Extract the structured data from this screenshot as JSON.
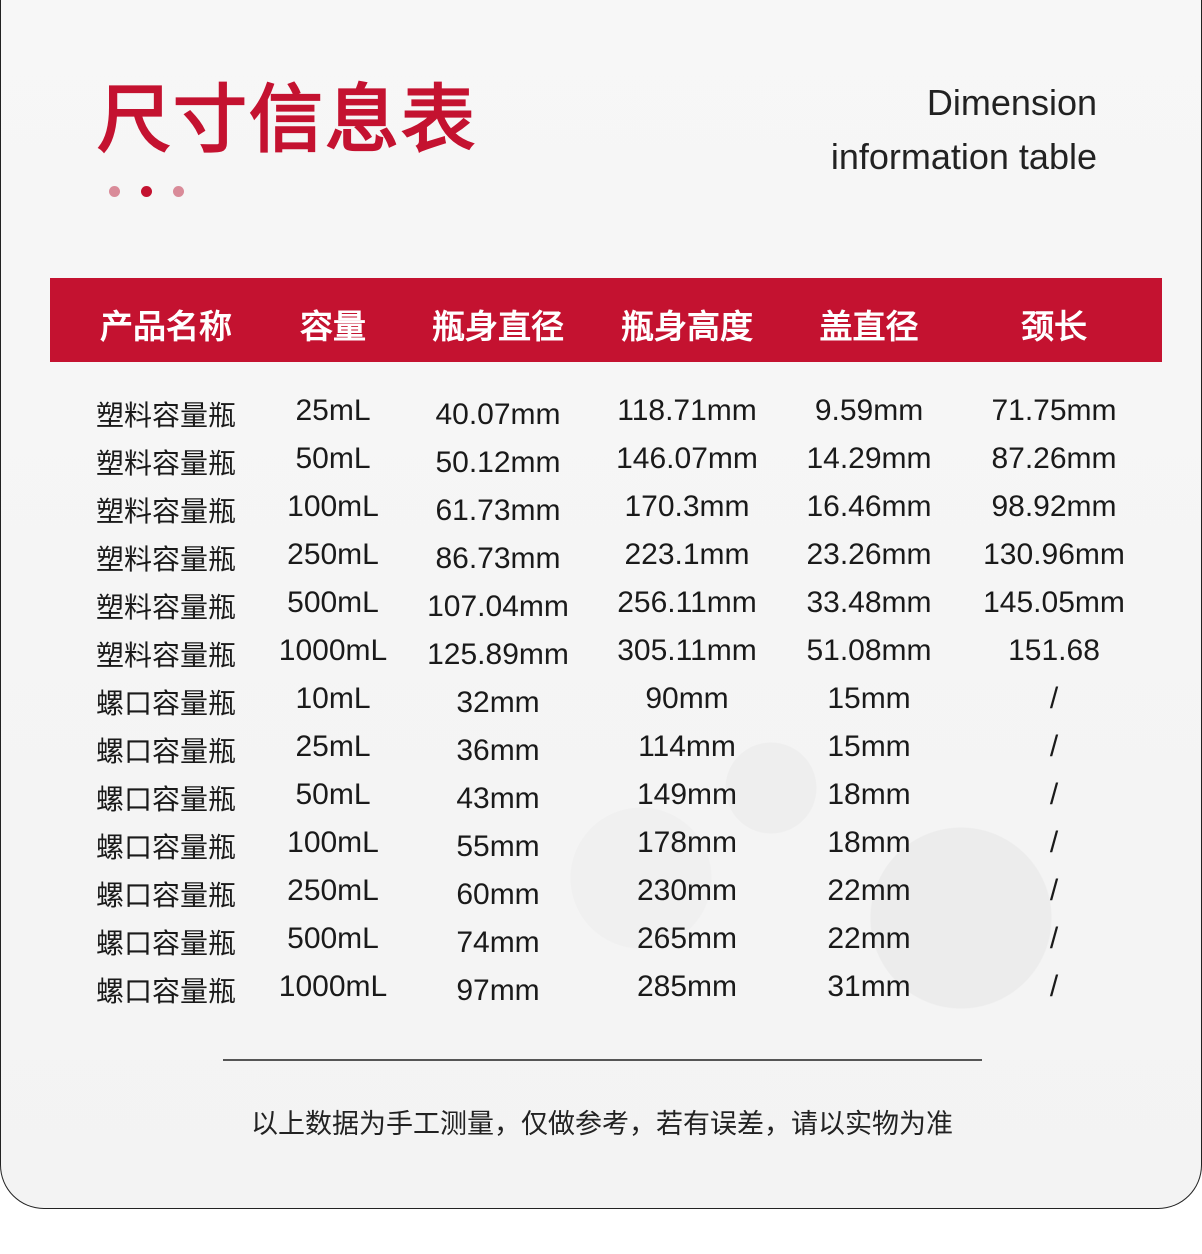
{
  "title": "尺寸信息表",
  "subtitle_en": [
    "Dimension",
    "information table"
  ],
  "colors": {
    "accent": "#c41230",
    "dot_light": "#d98b99"
  },
  "table": {
    "headers": [
      "产品名称",
      "容量",
      "瓶身直径",
      "瓶身高度",
      "盖直径",
      "颈长"
    ],
    "rows": [
      [
        "塑料容量瓶",
        "25mL",
        "40.07mm",
        "118.71mm",
        "9.59mm",
        "71.75mm"
      ],
      [
        "塑料容量瓶",
        "50mL",
        "50.12mm",
        "146.07mm",
        "14.29mm",
        "87.26mm"
      ],
      [
        "塑料容量瓶",
        "100mL",
        "61.73mm",
        "170.3mm",
        "16.46mm",
        "98.92mm"
      ],
      [
        "塑料容量瓶",
        "250mL",
        "86.73mm",
        "223.1mm",
        "23.26mm",
        "130.96mm"
      ],
      [
        "塑料容量瓶",
        "500mL",
        "107.04mm",
        "256.11mm",
        "33.48mm",
        "145.05mm"
      ],
      [
        "塑料容量瓶",
        "1000mL",
        "125.89mm",
        "305.11mm",
        "51.08mm",
        "151.68"
      ],
      [
        "螺口容量瓶",
        "10mL",
        "32mm",
        "90mm",
        "15mm",
        "/"
      ],
      [
        "螺口容量瓶",
        "25mL",
        "36mm",
        "114mm",
        "15mm",
        "/"
      ],
      [
        "螺口容量瓶",
        "50mL",
        "43mm",
        "149mm",
        "18mm",
        "/"
      ],
      [
        "螺口容量瓶",
        "100mL",
        "55mm",
        "178mm",
        "18mm",
        "/"
      ],
      [
        "螺口容量瓶",
        "250mL",
        "60mm",
        "230mm",
        "22mm",
        "/"
      ],
      [
        "螺口容量瓶",
        "500mL",
        "74mm",
        "265mm",
        "22mm",
        "/"
      ],
      [
        "螺口容量瓶",
        "1000mL",
        "97mm",
        "285mm",
        "31mm",
        "/"
      ]
    ]
  },
  "footnote": "以上数据为手工测量，仅做参考，若有误差，请以实物为准"
}
